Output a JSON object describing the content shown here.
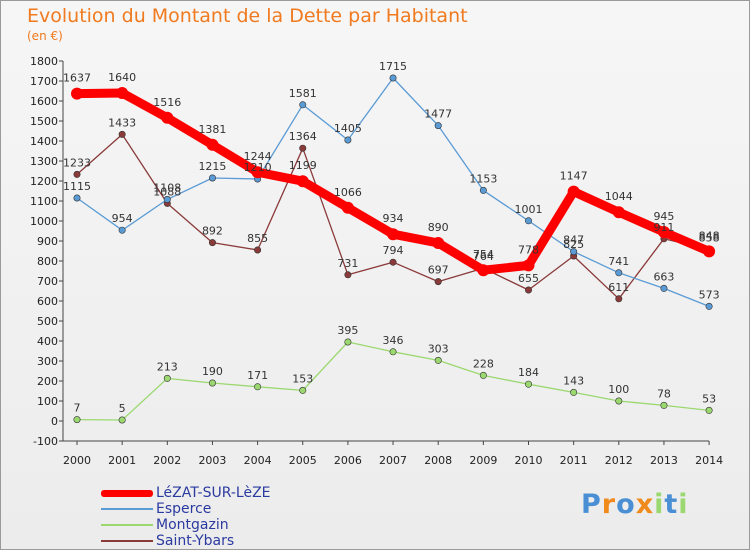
{
  "title": "Evolution du Montant de la Dette par Habitant",
  "unit_label": "(en €)",
  "logo_text": "Proxiti",
  "chart_data": {
    "type": "line",
    "title": "Evolution du Montant de la Dette par Habitant",
    "ylabel": "(en €)",
    "xlabel": "",
    "x": [
      "2000",
      "2001",
      "2002",
      "2003",
      "2004",
      "2005",
      "2006",
      "2007",
      "2008",
      "2009",
      "2010",
      "2011",
      "2012",
      "2013",
      "2014"
    ],
    "ylim": [
      -100,
      1800
    ],
    "yticks": [
      -100,
      0,
      100,
      200,
      300,
      400,
      500,
      600,
      700,
      800,
      900,
      1000,
      1100,
      1200,
      1300,
      1400,
      1500,
      1600,
      1700,
      1800
    ],
    "grid": false,
    "legend": "bottom-left",
    "series": [
      {
        "name": "LéZAT-SUR-LèZE",
        "color": "#ff0000",
        "values": [
          1637,
          1640,
          1516,
          1381,
          1244,
          1199,
          1066,
          934,
          890,
          754,
          778,
          1147,
          1044,
          945,
          848
        ]
      },
      {
        "name": "Esperce",
        "color": "#5b9bd5",
        "values": [
          1115,
          954,
          1108,
          1215,
          1210,
          1581,
          1405,
          1715,
          1477,
          1153,
          1001,
          847,
          741,
          663,
          573
        ]
      },
      {
        "name": "Montgazin",
        "color": "#9bd870",
        "values": [
          7,
          5,
          213,
          190,
          171,
          153,
          395,
          346,
          303,
          228,
          184,
          143,
          100,
          78,
          53
        ]
      },
      {
        "name": "Saint-Ybars",
        "color": "#8b3a3a",
        "values": [
          1233,
          1433,
          1088,
          892,
          855,
          1364,
          731,
          794,
          697,
          764,
          655,
          825,
          611,
          911,
          858
        ]
      }
    ]
  }
}
